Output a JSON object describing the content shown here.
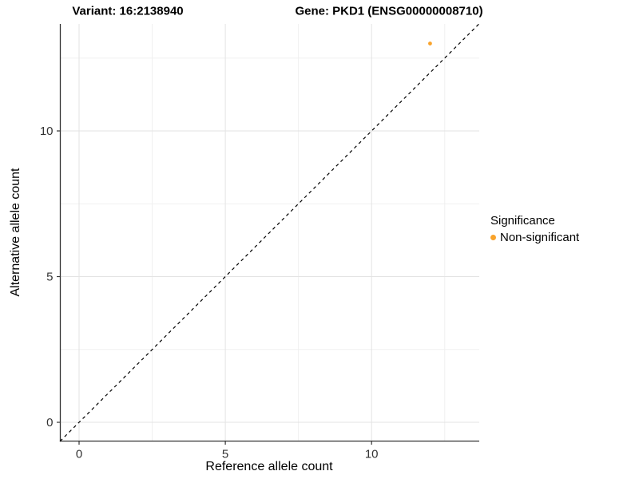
{
  "titles": {
    "left": "Variant: 16:2138940",
    "right": "Gene: PKD1 (ENSG00000008710)"
  },
  "legend": {
    "title": "Significance",
    "entries": [
      {
        "label": "Non-significant",
        "color": "#F9A32B"
      }
    ]
  },
  "colors": {
    "point": "#F9A32B",
    "grid_major": "#e3e3e3",
    "grid_minor": "#f0f0f0",
    "axis_line": "#333333",
    "tick_text": "#333333",
    "reference_line": "#000000"
  },
  "chart_data": {
    "type": "scatter",
    "title": "Variant: 16:2138940   Gene: PKD1 (ENSG00000008710)",
    "xlabel": "Reference allele count",
    "ylabel": "Alternative allele count",
    "xlim": [
      -0.65,
      13.7
    ],
    "ylim": [
      -0.65,
      13.7
    ],
    "x_ticks": [
      0,
      5,
      10
    ],
    "y_ticks": [
      0,
      5,
      10
    ],
    "x_minor_gridlines": [
      2.5,
      7.5,
      12.5
    ],
    "y_minor_gridlines": [
      2.5,
      7.5,
      12.5
    ],
    "grid": true,
    "legend_position": "right",
    "series": [
      {
        "name": "Non-significant",
        "color": "#F9A32B",
        "points": [
          {
            "x": 12,
            "y": 13
          }
        ]
      }
    ],
    "reference_line": {
      "style": "dashed",
      "slope": 1,
      "intercept": 0
    }
  }
}
